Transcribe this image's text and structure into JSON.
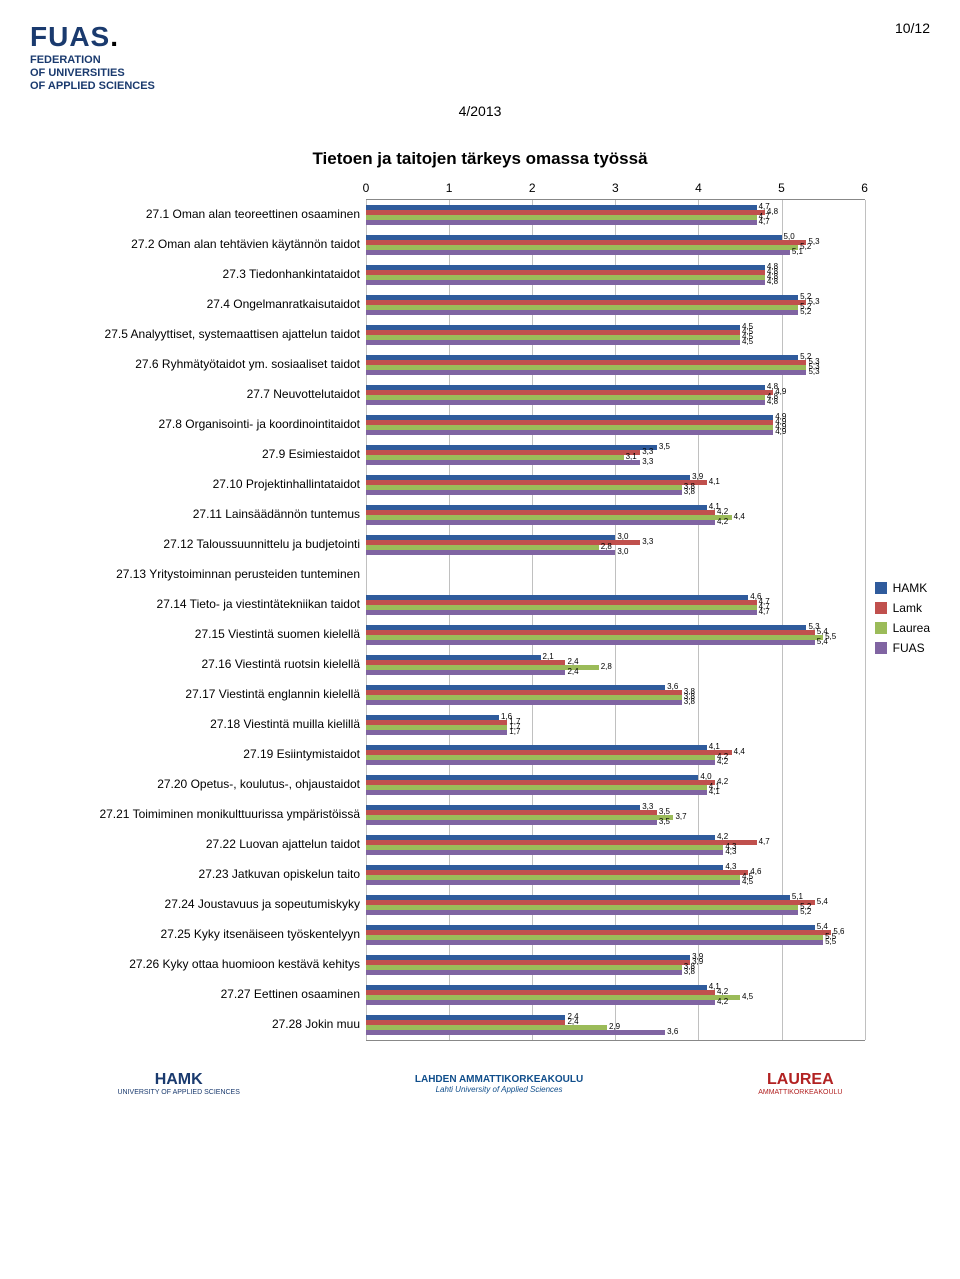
{
  "page_number": "10/12",
  "doc_date": "4/2013",
  "chart": {
    "title": "Tietoen ja taitojen tärkeys omassa työssä",
    "type": "grouped-horizontal-bar",
    "x_axis": {
      "min": 0,
      "max": 6,
      "ticks": [
        0,
        1,
        2,
        3,
        4,
        5,
        6
      ]
    },
    "series": [
      {
        "key": "HAMK",
        "color": "#2f5b9c"
      },
      {
        "key": "Lamk",
        "color": "#c0504d"
      },
      {
        "key": "Laurea",
        "color": "#9bbb59"
      },
      {
        "key": "FUAS",
        "color": "#8064a2"
      }
    ],
    "categories": [
      {
        "label": "27.1 Oman alan teoreettinen osaaminen",
        "values": {
          "HAMK": 4.7,
          "Lamk": 4.8,
          "Laurea": 4.7,
          "FUAS": 4.7
        }
      },
      {
        "label": "27.2 Oman alan tehtävien käytännön taidot",
        "values": {
          "HAMK": 5.0,
          "Lamk": 5.3,
          "Laurea": 5.2,
          "FUAS": 5.1
        }
      },
      {
        "label": "27.3 Tiedonhankintataidot",
        "values": {
          "HAMK": 4.8,
          "Lamk": 4.8,
          "Laurea": 4.8,
          "FUAS": 4.8
        }
      },
      {
        "label": "27.4 Ongelmanratkaisutaidot",
        "values": {
          "HAMK": 5.2,
          "Lamk": 5.3,
          "Laurea": 5.2,
          "FUAS": 5.2
        }
      },
      {
        "label": "27.5 Analyyttiset, systemaattisen ajattelun taidot",
        "values": {
          "HAMK": 4.5,
          "Lamk": 4.5,
          "Laurea": 4.5,
          "FUAS": 4.5
        }
      },
      {
        "label": "27.6 Ryhmätyötaidot ym. sosiaaliset taidot",
        "values": {
          "HAMK": 5.2,
          "Lamk": 5.3,
          "Laurea": 5.3,
          "FUAS": 5.3
        }
      },
      {
        "label": "27.7 Neuvottelutaidot",
        "values": {
          "HAMK": 4.8,
          "Lamk": 4.9,
          "Laurea": 4.8,
          "FUAS": 4.8
        }
      },
      {
        "label": "27.8 Organisointi- ja koordinointitaidot",
        "values": {
          "HAMK": 4.9,
          "Lamk": 4.9,
          "Laurea": 4.9,
          "FUAS": 4.9
        }
      },
      {
        "label": "27.9 Esimiestaidot",
        "values": {
          "HAMK": 3.5,
          "Lamk": 3.3,
          "Laurea": 3.1,
          "FUAS": 3.3
        }
      },
      {
        "label": "27.10 Projektinhallintataidot",
        "values": {
          "HAMK": 3.9,
          "Lamk": 4.1,
          "Laurea": 3.8,
          "FUAS": 3.8
        }
      },
      {
        "label": "27.11 Lainsäädännön tuntemus",
        "values": {
          "HAMK": 4.1,
          "Lamk": 4.2,
          "Laurea": 4.4,
          "FUAS": 4.2
        }
      },
      {
        "label": "27.12 Taloussuunnittelu ja budjetointi",
        "values": {
          "HAMK": 3.0,
          "Lamk": 3.3,
          "Laurea": 2.8,
          "FUAS": 3.0
        }
      },
      {
        "label": "27.13 Yritystoiminnan perusteiden tunteminen",
        "values": {}
      },
      {
        "label": "27.14 Tieto- ja viestintätekniikan taidot",
        "values": {
          "HAMK": 4.6,
          "Lamk": 4.7,
          "Laurea": 4.7,
          "FUAS": 4.7
        }
      },
      {
        "label": "27.15 Viestintä suomen kielellä",
        "values": {
          "HAMK": 5.3,
          "Lamk": 5.4,
          "Laurea": 5.5,
          "FUAS": 5.4
        }
      },
      {
        "label": "27.16 Viestintä ruotsin kielellä",
        "values": {
          "HAMK": 2.1,
          "Lamk": 2.4,
          "Laurea": 2.8,
          "FUAS": 2.4
        }
      },
      {
        "label": "27.17 Viestintä englannin kielellä",
        "values": {
          "HAMK": 3.6,
          "Lamk": 3.8,
          "Laurea": 3.8,
          "FUAS": 3.8
        }
      },
      {
        "label": "27.18 Viestintä muilla kielillä",
        "values": {
          "HAMK": 1.6,
          "Lamk": 1.7,
          "Laurea": 1.7,
          "FUAS": 1.7
        }
      },
      {
        "label": "27.19 Esiintymistaidot",
        "values": {
          "HAMK": 4.1,
          "Lamk": 4.4,
          "Laurea": 4.2,
          "FUAS": 4.2
        }
      },
      {
        "label": "27.20 Opetus-, koulutus-, ohjaustaidot",
        "values": {
          "HAMK": 4.0,
          "Lamk": 4.2,
          "Laurea": 4.1,
          "FUAS": 4.1
        }
      },
      {
        "label": "27.21 Toimiminen monikulttuurissa ympäristöissä",
        "values": {
          "HAMK": 3.3,
          "Lamk": 3.5,
          "Laurea": 3.7,
          "FUAS": 3.5
        }
      },
      {
        "label": "27.22 Luovan ajattelun taidot",
        "values": {
          "HAMK": 4.2,
          "Lamk": 4.7,
          "Laurea": 4.3,
          "FUAS": 4.3
        }
      },
      {
        "label": "27.23 Jatkuvan opiskelun taito",
        "values": {
          "HAMK": 4.3,
          "Lamk": 4.6,
          "Laurea": 4.5,
          "FUAS": 4.5
        }
      },
      {
        "label": "27.24 Joustavuus ja sopeutumiskyky",
        "values": {
          "HAMK": 5.1,
          "Lamk": 5.4,
          "Laurea": 5.2,
          "FUAS": 5.2
        }
      },
      {
        "label": "27.25 Kyky itsenäiseen työskentelyyn",
        "values": {
          "HAMK": 5.4,
          "Lamk": 5.6,
          "Laurea": 5.5,
          "FUAS": 5.5
        }
      },
      {
        "label": "27.26 Kyky ottaa huomioon kestävä kehitys",
        "values": {
          "HAMK": 3.9,
          "Lamk": 3.9,
          "Laurea": 3.8,
          "FUAS": 3.8
        }
      },
      {
        "label": "27.27 Eettinen osaaminen",
        "values": {
          "HAMK": 4.1,
          "Lamk": 4.2,
          "Laurea": 4.5,
          "FUAS": 4.2
        }
      },
      {
        "label": "27.28 Jokin muu",
        "values": {
          "HAMK": 2.4,
          "Lamk": 2.4,
          "Laurea": 2.9,
          "FUAS": 3.6
        }
      }
    ],
    "grid_color": "#c0c0c0",
    "background_color": "#ffffff"
  },
  "legend_title": "",
  "footer": {
    "hamk": "HAMK",
    "hamk_sub": "UNIVERSITY OF APPLIED SCIENCES",
    "lahti": "LAHDEN AMMATTIKORKEAKOULU",
    "lahti_sub": "Lahti University of Applied Sciences",
    "laurea": "LAUREA",
    "laurea_sub": "AMMATTIKORKEAKOULU"
  },
  "logo": {
    "fuas": "FUAS",
    "fed": "FEDERATION",
    "uni": "OF UNIVERSITIES",
    "app": "OF APPLIED SCIENCES"
  }
}
